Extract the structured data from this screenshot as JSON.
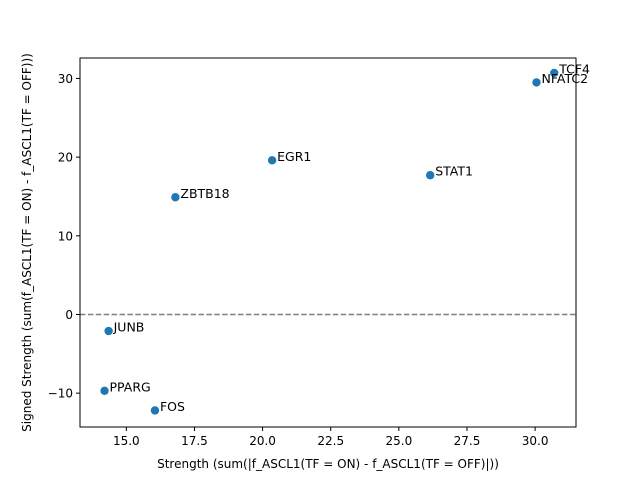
{
  "chart_data": {
    "type": "scatter",
    "xlabel": "Strength (sum(|f_ASCL1(TF = ON) - f_ASCL1(TF = OFF)|))",
    "ylabel": "Signed Strength (sum(f_ASCL1(TF = ON) - f_ASCL1(TF = OFF)))",
    "xlim": [
      13.3,
      31.5
    ],
    "ylim": [
      -14.3,
      32.6
    ],
    "x_ticks": [
      15.0,
      17.5,
      20.0,
      22.5,
      25.0,
      27.5,
      30.0
    ],
    "x_tick_labels": [
      "15.0",
      "17.5",
      "20.0",
      "22.5",
      "25.0",
      "27.5",
      "30.0"
    ],
    "y_ticks": [
      -10,
      0,
      10,
      20,
      30
    ],
    "y_tick_labels": [
      "−10",
      "0",
      "10",
      "20",
      "30"
    ],
    "reference_line": {
      "y": 0,
      "style": "dashed",
      "color": "#808080"
    },
    "grid": false,
    "marker_color": "#1f77b4",
    "points": [
      {
        "label": "TCF4",
        "x": 30.7,
        "y": 30.7
      },
      {
        "label": "NFATC2",
        "x": 30.05,
        "y": 29.5
      },
      {
        "label": "EGR1",
        "x": 20.35,
        "y": 19.6
      },
      {
        "label": "STAT1",
        "x": 26.15,
        "y": 17.7
      },
      {
        "label": "ZBTB18",
        "x": 16.8,
        "y": 14.9
      },
      {
        "label": "JUNB",
        "x": 14.35,
        "y": -2.1
      },
      {
        "label": "PPARG",
        "x": 14.2,
        "y": -9.7
      },
      {
        "label": "FOS",
        "x": 16.05,
        "y": -12.2
      }
    ]
  }
}
